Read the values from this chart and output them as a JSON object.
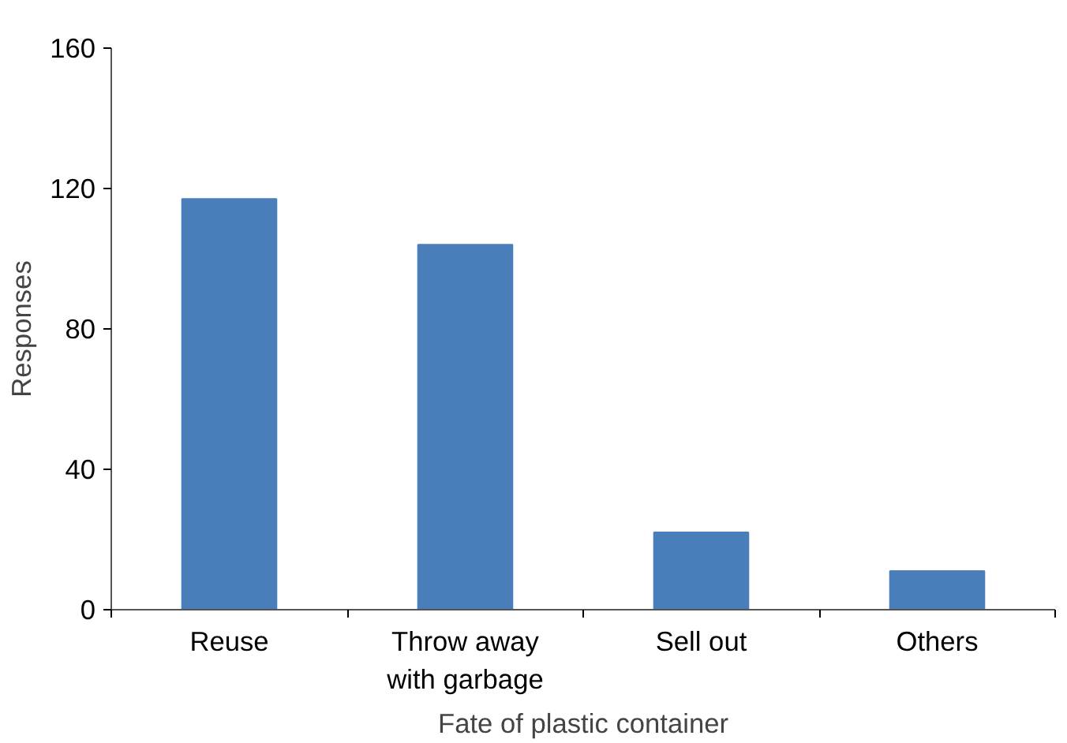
{
  "chart_data": {
    "type": "bar",
    "xlabel": "Fate of plastic container",
    "ylabel": "Responses",
    "categories": [
      "Reuse",
      "Throw away with garbage",
      "Sell out",
      "Others"
    ],
    "values": [
      117,
      104,
      22,
      11
    ],
    "color": "#4a7ebb",
    "ylim": [
      0,
      160
    ],
    "yticks": [
      0,
      40,
      80,
      120,
      160
    ],
    "grid": false
  }
}
